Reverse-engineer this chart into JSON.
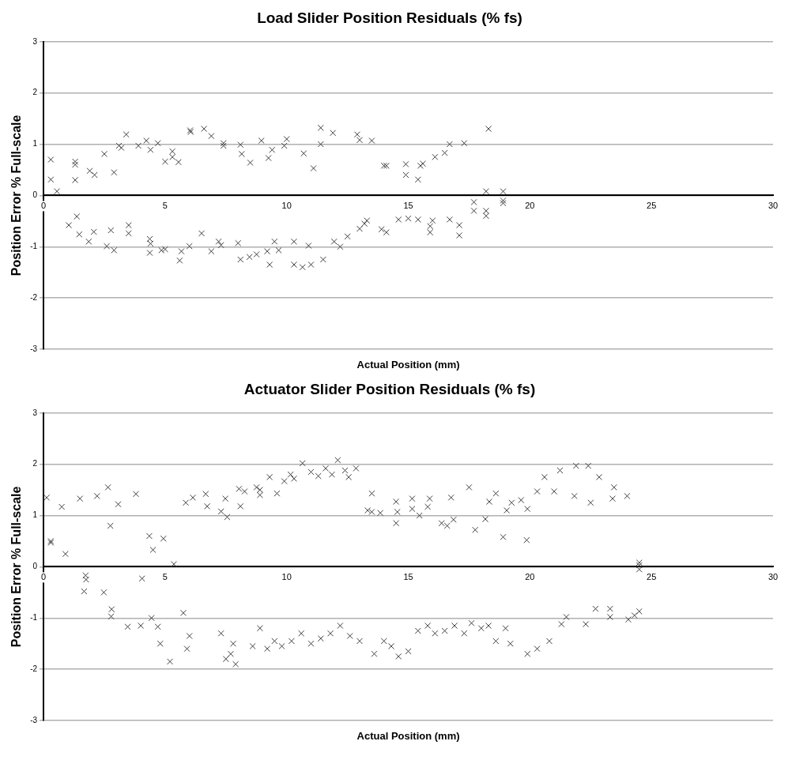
{
  "chart_data": [
    {
      "type": "scatter",
      "title": "Load Slider Position Residuals (% fs)",
      "xlabel": "Actual Position (mm)",
      "ylabel": "Position Error % Full-scale",
      "color": "#404040",
      "marker": "cross",
      "grid": "y",
      "xlim": [
        0,
        30
      ],
      "xticks": [
        0,
        5,
        10,
        15,
        20,
        25,
        30
      ],
      "ylim": [
        -3,
        3
      ],
      "yticks": [
        -3,
        -2,
        -1,
        0,
        1,
        2,
        3
      ],
      "x": [
        0.3,
        0.3,
        0.55,
        1.3,
        1.3,
        1.3,
        1.9,
        2.1,
        2.5,
        2.9,
        3.1,
        3.2,
        3.4,
        3.9,
        4.23,
        4.4,
        4.7,
        5.0,
        5.3,
        5.3,
        5.55,
        6.03,
        6.05,
        6.6,
        6.9,
        7.4,
        7.4,
        8.1,
        8.15,
        8.5,
        8.96,
        9.25,
        9.4,
        9.9,
        10.0,
        10.7,
        11.1,
        11.4,
        11.4,
        11.9,
        12.9,
        13.0,
        13.5,
        14.0,
        14.1,
        14.9,
        14.9,
        15.4,
        15.5,
        15.6,
        16.1,
        16.5,
        16.7,
        17.3,
        18.3,
        1.04,
        1.37,
        1.47,
        1.86,
        2.07,
        2.6,
        2.77,
        2.9,
        3.5,
        3.5,
        4.37,
        4.37,
        4.4,
        4.85,
        5.0,
        5.67,
        5.6,
        6.0,
        6.5,
        6.9,
        7.2,
        7.3,
        8.0,
        8.1,
        8.47,
        8.76,
        9.2,
        9.3,
        9.5,
        9.67,
        10.3,
        10.3,
        10.65,
        10.9,
        11.0,
        11.5,
        11.95,
        12.2,
        12.5,
        13.0,
        13.2,
        13.3,
        13.9,
        14.1,
        14.6,
        15.0,
        15.4,
        15.9,
        15.9,
        16.0,
        16.7,
        17.1,
        17.1,
        17.7,
        17.7,
        18.2,
        18.2,
        18.2,
        18.9,
        18.9,
        18.9
      ],
      "values": [
        0.7,
        0.31,
        0.08,
        0.66,
        0.6,
        0.3,
        0.48,
        0.4,
        0.81,
        0.45,
        0.97,
        0.93,
        1.19,
        0.97,
        1.07,
        0.89,
        1.02,
        0.66,
        0.86,
        0.75,
        0.65,
        1.27,
        1.24,
        1.3,
        1.16,
        1.02,
        0.97,
        0.99,
        0.81,
        0.64,
        1.07,
        0.73,
        0.89,
        0.97,
        1.1,
        0.82,
        0.53,
        1.32,
        1.0,
        1.22,
        1.19,
        1.08,
        1.07,
        0.58,
        0.58,
        0.61,
        0.4,
        0.31,
        0.58,
        0.62,
        0.75,
        0.83,
        1.0,
        1.02,
        1.3,
        -0.58,
        -0.41,
        -0.76,
        -0.9,
        -0.71,
        -0.99,
        -0.68,
        -1.07,
        -0.58,
        -0.74,
        -0.85,
        -1.12,
        -0.94,
        -1.07,
        -1.05,
        -1.09,
        -1.27,
        -0.99,
        -0.74,
        -1.09,
        -0.9,
        -0.97,
        -0.93,
        -1.25,
        -1.2,
        -1.15,
        -1.09,
        -1.35,
        -0.9,
        -1.07,
        -1.35,
        -0.9,
        -1.4,
        -0.98,
        -1.35,
        -1.25,
        -0.9,
        -1.0,
        -0.8,
        -0.65,
        -0.55,
        -0.49,
        -0.66,
        -0.72,
        -0.47,
        -0.45,
        -0.47,
        -0.6,
        -0.72,
        -0.49,
        -0.47,
        -0.58,
        -0.78,
        -0.13,
        -0.3,
        0.08,
        -0.3,
        -0.4,
        0.08,
        -0.1,
        -0.15
      ]
    },
    {
      "type": "scatter",
      "title": "Actuator Slider Position Residuals (% fs)",
      "xlabel": "Actual Position (mm)",
      "ylabel": "Position Error % Full-scale",
      "color": "#404040",
      "marker": "cross",
      "grid": "y",
      "xlim": [
        0,
        30
      ],
      "xticks": [
        0,
        5,
        10,
        15,
        20,
        25,
        30
      ],
      "ylim": [
        -3,
        3
      ],
      "yticks": [
        -3,
        -2,
        -1,
        0,
        1,
        2,
        3
      ],
      "x": [
        0.13,
        0.3,
        0.3,
        0.75,
        0.9,
        1.5,
        2.2,
        2.65,
        2.75,
        3.07,
        3.8,
        4.35,
        4.5,
        4.93,
        5.36,
        5.85,
        6.14,
        6.67,
        6.73,
        7.3,
        7.55,
        7.48,
        8.04,
        8.1,
        8.27,
        8.76,
        8.9,
        8.9,
        9.3,
        9.6,
        9.9,
        10.16,
        10.3,
        10.65,
        11.0,
        11.3,
        11.6,
        11.86,
        12.1,
        12.4,
        12.55,
        12.85,
        13.5,
        13.33,
        13.5,
        13.85,
        14.5,
        14.5,
        14.55,
        15.16,
        15.16,
        15.46,
        15.8,
        15.88,
        16.37,
        16.6,
        16.86,
        16.76,
        17.5,
        17.75,
        18.17,
        18.33,
        18.6,
        18.9,
        19.05,
        19.25,
        19.64,
        19.87,
        19.9,
        20.3,
        20.6,
        21.0,
        21.24,
        21.9,
        21.83,
        22.4,
        22.5,
        22.85,
        23.4,
        23.46,
        24.0,
        24.5,
        24.5,
        24.5,
        1.73,
        1.75,
        1.67,
        2.48,
        2.8,
        2.78,
        3.46,
        4.05,
        4.0,
        4.44,
        4.7,
        5.75,
        4.8,
        5.2,
        6.0,
        5.9,
        7.3,
        7.5,
        7.7,
        7.9,
        7.8,
        8.6,
        8.9,
        9.2,
        9.5,
        9.8,
        10.2,
        10.6,
        11.0,
        11.4,
        11.8,
        12.2,
        12.6,
        13.0,
        13.6,
        14.0,
        14.3,
        14.6,
        15.0,
        15.4,
        15.8,
        16.1,
        16.5,
        16.9,
        17.3,
        17.6,
        18.0,
        18.3,
        18.6,
        19.0,
        19.2,
        19.9,
        20.3,
        20.8,
        21.3,
        21.5,
        22.3,
        22.7,
        23.3,
        23.3,
        24.05,
        24.3,
        24.5
      ],
      "values": [
        1.35,
        0.5,
        0.47,
        1.17,
        0.25,
        1.33,
        1.38,
        1.55,
        0.8,
        1.22,
        1.42,
        0.6,
        0.33,
        0.55,
        0.05,
        1.25,
        1.35,
        1.42,
        1.18,
        1.08,
        0.97,
        1.33,
        1.52,
        1.18,
        1.47,
        1.55,
        1.5,
        1.4,
        1.75,
        1.43,
        1.67,
        1.8,
        1.72,
        2.02,
        1.85,
        1.77,
        1.92,
        1.8,
        2.08,
        1.88,
        1.75,
        1.92,
        1.43,
        1.1,
        1.07,
        1.05,
        1.27,
        0.85,
        1.07,
        1.33,
        1.13,
        1.0,
        1.17,
        1.33,
        0.85,
        0.8,
        0.92,
        1.35,
        1.55,
        0.72,
        0.93,
        1.27,
        1.43,
        0.58,
        1.1,
        1.25,
        1.3,
        0.52,
        1.13,
        1.47,
        1.75,
        1.47,
        1.88,
        1.97,
        1.38,
        1.97,
        1.25,
        1.75,
        1.33,
        1.55,
        1.38,
        0.08,
        -0.05,
        0.03,
        -0.17,
        -0.25,
        -0.48,
        -0.5,
        -0.83,
        -0.97,
        -1.17,
        -0.23,
        -1.15,
        -1.0,
        -1.17,
        -0.9,
        -1.5,
        -1.85,
        -1.35,
        -1.6,
        -1.3,
        -1.8,
        -1.7,
        -1.9,
        -1.5,
        -1.55,
        -1.2,
        -1.6,
        -1.45,
        -1.55,
        -1.45,
        -1.3,
        -1.5,
        -1.4,
        -1.3,
        -1.15,
        -1.35,
        -1.45,
        -1.7,
        -1.45,
        -1.55,
        -1.75,
        -1.65,
        -1.25,
        -1.15,
        -1.3,
        -1.25,
        -1.15,
        -1.3,
        -1.1,
        -1.2,
        -1.15,
        -1.45,
        -1.2,
        -1.5,
        -1.7,
        -1.6,
        -1.45,
        -1.12,
        -0.98,
        -1.12,
        -0.82,
        -0.82,
        -0.98,
        -1.03,
        -0.95,
        -0.87
      ]
    }
  ]
}
